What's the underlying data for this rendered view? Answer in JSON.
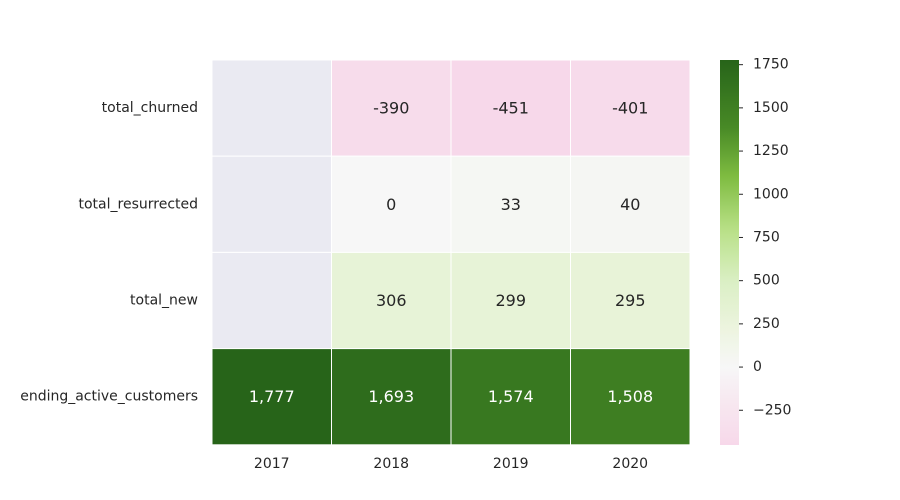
{
  "chart_data": {
    "type": "heatmap",
    "title": "",
    "xlabel": "",
    "ylabel": "",
    "x_categories": [
      "2017",
      "2018",
      "2019",
      "2020"
    ],
    "y_categories": [
      "total_churned",
      "total_resurrected",
      "total_new",
      "ending_active_customers"
    ],
    "values": [
      [
        null,
        -390,
        -451,
        -401
      ],
      [
        null,
        0,
        33,
        40
      ],
      [
        null,
        306,
        299,
        295
      ],
      [
        1777,
        1693,
        1574,
        1508
      ]
    ],
    "cell_labels": [
      [
        null,
        "-390",
        "-451",
        "-401"
      ],
      [
        null,
        "0",
        "33",
        "40"
      ],
      [
        null,
        "306",
        "299",
        "295"
      ],
      [
        "1,777",
        "1,693",
        "1,574",
        "1,508"
      ]
    ],
    "colormap": "PiYG",
    "color_range": [
      -451,
      1777
    ],
    "colorbar_ticks": [
      1750,
      1500,
      1250,
      1000,
      750,
      500,
      250,
      0,
      -250
    ],
    "colorbar_tick_labels": [
      "1750",
      "1500",
      "1250",
      "1000",
      "750",
      "500",
      "250",
      "0",
      "−250"
    ],
    "missing_color": "#eaeaf2",
    "grid": false,
    "legend": "colorbar right"
  }
}
